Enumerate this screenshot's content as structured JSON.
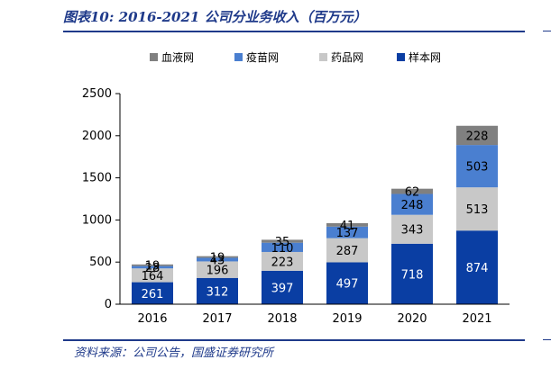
{
  "title": "图表10:  2016-2021 公司分业务收入（百万元）",
  "source": "资料来源：公司公告，国盛证券研究所",
  "colors": {
    "blood": "#808080",
    "vaccine": "#4a7fd0",
    "drug": "#c8c8c8",
    "sample": "#0a3ea3"
  },
  "chart_data": {
    "type": "bar",
    "stacked": true,
    "categories": [
      "2016",
      "2017",
      "2018",
      "2019",
      "2020",
      "2021"
    ],
    "series": [
      {
        "name": "样本网",
        "key": "sample",
        "values": [
          261,
          312,
          397,
          497,
          718,
          874
        ]
      },
      {
        "name": "药品网",
        "key": "drug",
        "values": [
          164,
          196,
          223,
          287,
          343,
          513
        ]
      },
      {
        "name": "疫苗网",
        "key": "vaccine",
        "values": [
          28,
          43,
          110,
          137,
          248,
          503
        ]
      },
      {
        "name": "血液网",
        "key": "blood",
        "values": [
          19,
          19,
          35,
          41,
          62,
          228
        ]
      }
    ],
    "legend_order": [
      "血液网",
      "疫苗网",
      "药品网",
      "样本网"
    ],
    "ylim": [
      0,
      2500
    ],
    "yticks": [
      "0",
      "500",
      "1000",
      "1500",
      "2000",
      "2500"
    ],
    "legend_position": "top"
  }
}
